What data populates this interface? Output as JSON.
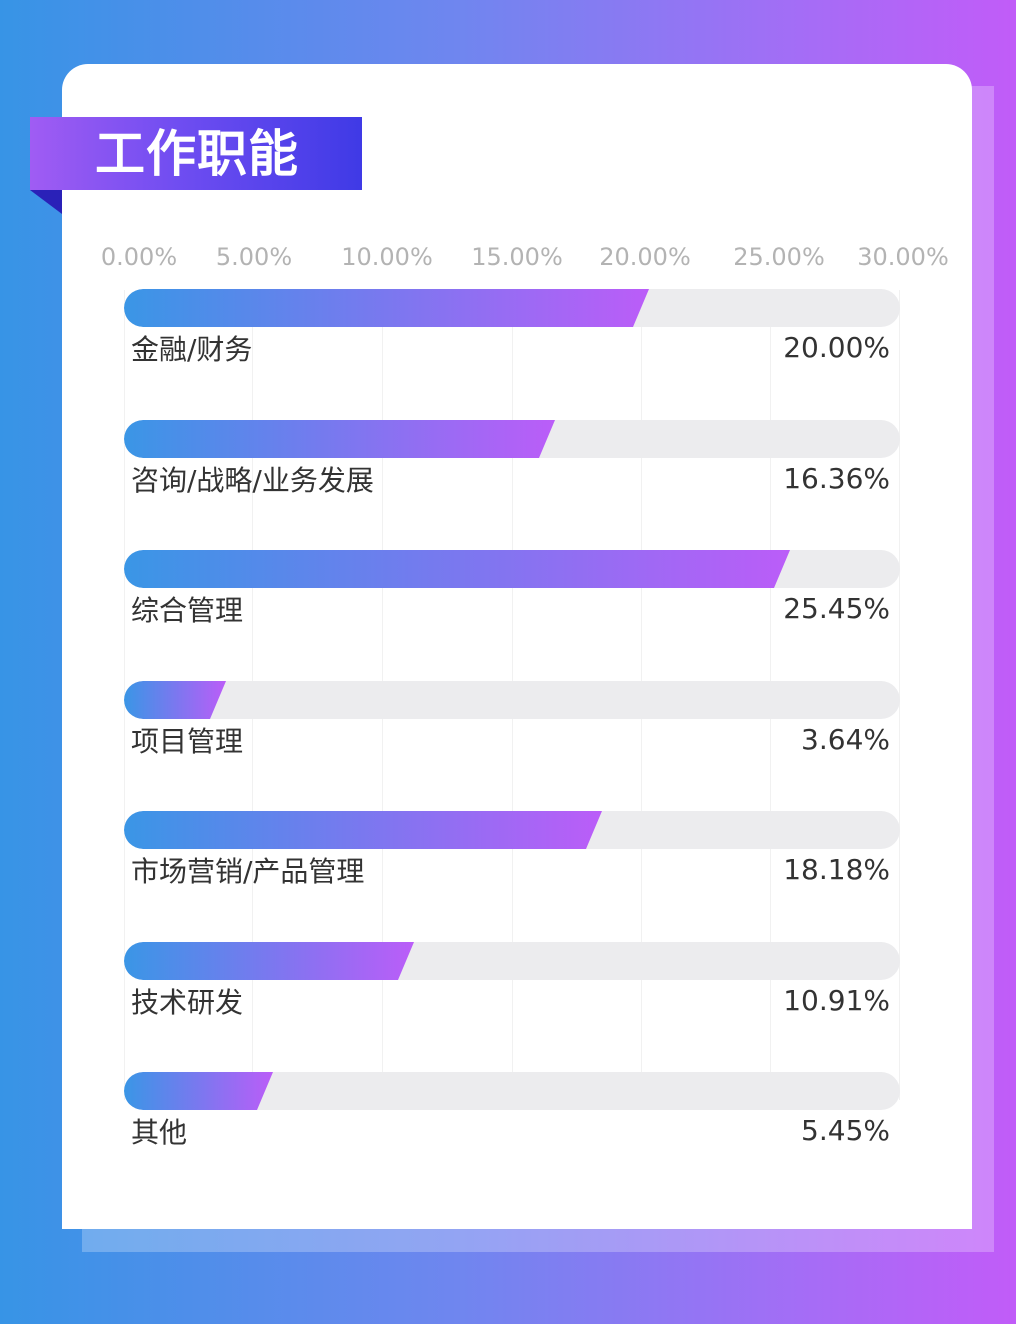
{
  "title": "工作职能",
  "chart_data": {
    "type": "bar",
    "orientation": "horizontal",
    "title": "工作职能",
    "x_ticks": [
      "0.00%",
      "5.00%",
      "10.00%",
      "15.00%",
      "20.00%",
      "25.00%",
      "30.00%"
    ],
    "xlim": [
      0,
      30
    ],
    "categories": [
      "金融/财务",
      "咨询/战略/业务发展",
      "综合管理",
      "项目管理",
      "市场营销/产品管理",
      "技术研发",
      "其他"
    ],
    "values": [
      20.0,
      16.36,
      25.45,
      3.64,
      18.18,
      10.91,
      5.45
    ],
    "value_labels": [
      "20.00%",
      "16.36%",
      "25.45%",
      "3.64%",
      "18.18%",
      "10.91%",
      "5.45%"
    ],
    "grid": true,
    "colors": {
      "bar_start": "#3a96e6",
      "bar_end": "#bb5df8",
      "track": "#ececee"
    }
  }
}
